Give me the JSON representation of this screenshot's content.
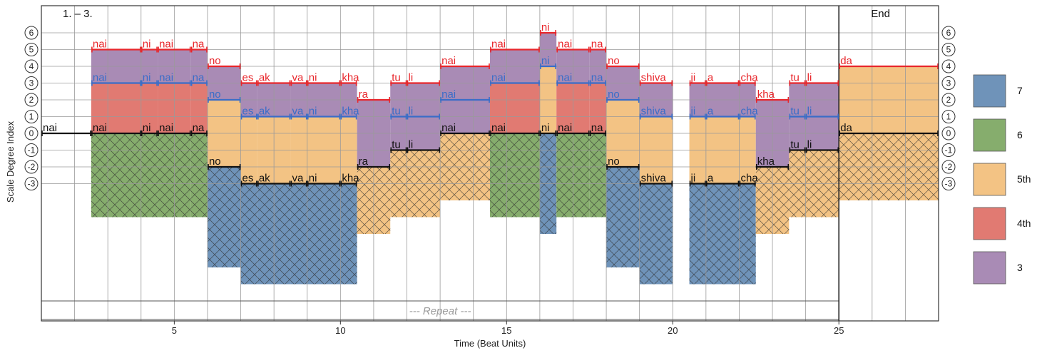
{
  "chart_data": {
    "type": "bar",
    "section_labels": {
      "start": "1. – 3.",
      "end": "End",
      "repeat": "--- Repeat ---"
    },
    "xlabel": "Time (Beat Units)",
    "ylabel": "Scale Degree Index",
    "xlim": [
      1,
      28
    ],
    "xticks": [
      5,
      10,
      15,
      20,
      25
    ],
    "degree_ticks": [
      "6",
      "5",
      "4",
      "3",
      "2",
      "1",
      "0",
      "-1",
      "-2",
      "-3"
    ],
    "fills": {
      "7": "#6f93b9",
      "6": "#86ad6d",
      "5th": "#f3c384",
      "4th": "#e17a72",
      "3": "#a98bb5"
    },
    "legend": [
      "7",
      "6",
      "5th",
      "4th",
      "3"
    ],
    "notes": [
      {
        "syl": "nai",
        "start": 1,
        "end": 2.5,
        "top": 0,
        "mid": 0,
        "bottom": 0,
        "upper": "",
        "lower": ""
      },
      {
        "syl": "nai",
        "start": 2.5,
        "end": 4,
        "top": 5,
        "mid": 3,
        "bottom": -5,
        "upper": "4th",
        "lower": "6"
      },
      {
        "syl": "ni",
        "start": 4,
        "end": 4.5,
        "top": 5,
        "mid": 3,
        "bottom": -5,
        "upper": "4th",
        "lower": "6"
      },
      {
        "syl": "nai",
        "start": 4.5,
        "end": 5.5,
        "top": 5,
        "mid": 3,
        "bottom": -5,
        "upper": "4th",
        "lower": "6"
      },
      {
        "syl": "na",
        "start": 5.5,
        "end": 6,
        "top": 5,
        "mid": 3,
        "bottom": -5,
        "upper": "4th",
        "lower": "6"
      },
      {
        "syl": "no",
        "start": 6,
        "end": 7,
        "top": 4,
        "mid": 2,
        "bottom": -8,
        "upper": "3",
        "lower": "7"
      },
      {
        "syl": "es",
        "start": 7,
        "end": 7.5,
        "top": 3,
        "mid": 1,
        "bottom": -9,
        "upper": "3",
        "lower": "7"
      },
      {
        "syl": "ak",
        "start": 7.5,
        "end": 8.5,
        "top": 3,
        "mid": 1,
        "bottom": -9,
        "upper": "3",
        "lower": "7"
      },
      {
        "syl": "va",
        "start": 8.5,
        "end": 9,
        "top": 3,
        "mid": 1,
        "bottom": -9,
        "upper": "3",
        "lower": "7"
      },
      {
        "syl": "ni",
        "start": 9,
        "end": 10,
        "top": 3,
        "mid": 1,
        "bottom": -9,
        "upper": "3",
        "lower": "7"
      },
      {
        "syl": "kha",
        "start": 10,
        "end": 10.5,
        "top": 3,
        "mid": 1,
        "bottom": -9,
        "upper": "3",
        "lower": "7"
      },
      {
        "syl": "ra",
        "start": 10.5,
        "end": 11.5,
        "top": 2,
        "mid": 0,
        "bottom": -6,
        "upper": "3",
        "lower": "5th"
      },
      {
        "syl": "tu",
        "start": 11.5,
        "end": 12,
        "top": 3,
        "mid": 1,
        "bottom": -5,
        "upper": "3",
        "lower": "5th"
      },
      {
        "syl": "li",
        "start": 12,
        "end": 13,
        "top": 3,
        "mid": 1,
        "bottom": -5,
        "upper": "3",
        "lower": "5th"
      },
      {
        "syl": "nai",
        "start": 13,
        "end": 14.5,
        "top": 4,
        "mid": 2,
        "bottom": -4,
        "upper": "3",
        "lower": "5th"
      },
      {
        "syl": "nai",
        "start": 14.5,
        "end": 16,
        "top": 5,
        "mid": 3,
        "bottom": -5,
        "upper": "4th",
        "lower": "6"
      },
      {
        "syl": "ni",
        "start": 16,
        "end": 16.5,
        "top": 6,
        "mid": 4,
        "bottom": -6,
        "upper": "3",
        "lower": "7"
      },
      {
        "syl": "nai",
        "start": 16.5,
        "end": 17.5,
        "top": 5,
        "mid": 3,
        "bottom": -5,
        "upper": "4th",
        "lower": "6"
      },
      {
        "syl": "na",
        "start": 17.5,
        "end": 18,
        "top": 5,
        "mid": 3,
        "bottom": -5,
        "upper": "4th",
        "lower": "6"
      },
      {
        "syl": "no",
        "start": 18,
        "end": 19,
        "top": 4,
        "mid": 2,
        "bottom": -8,
        "upper": "3",
        "lower": "7"
      },
      {
        "syl": "shiva",
        "start": 19,
        "end": 20,
        "top": 3,
        "mid": 1,
        "bottom": -9,
        "upper": "3",
        "lower": "7"
      },
      {
        "syl": "ji",
        "start": 20.5,
        "end": 21,
        "top": 3,
        "mid": 1,
        "bottom": -9,
        "upper": "3",
        "lower": "7"
      },
      {
        "syl": "a",
        "start": 21,
        "end": 22,
        "top": 3,
        "mid": 1,
        "bottom": -9,
        "upper": "3",
        "lower": "7"
      },
      {
        "syl": "cha",
        "start": 22,
        "end": 22.5,
        "top": 3,
        "mid": 1,
        "bottom": -9,
        "upper": "3",
        "lower": "7"
      },
      {
        "syl": "kha",
        "start": 22.5,
        "end": 23.5,
        "top": 2,
        "mid": 0,
        "bottom": -6,
        "upper": "3",
        "lower": "5th"
      },
      {
        "syl": "tu",
        "start": 23.5,
        "end": 24,
        "top": 3,
        "mid": 1,
        "bottom": -5,
        "upper": "3",
        "lower": "5th"
      },
      {
        "syl": "li",
        "start": 24,
        "end": 25,
        "top": 3,
        "mid": 1,
        "bottom": -5,
        "upper": "3",
        "lower": "5th"
      },
      {
        "syl": "da",
        "start": 25,
        "end": 28,
        "top": 4,
        "mid": 0,
        "bottom": -4,
        "upper": "5th",
        "lower": "5th"
      }
    ]
  }
}
